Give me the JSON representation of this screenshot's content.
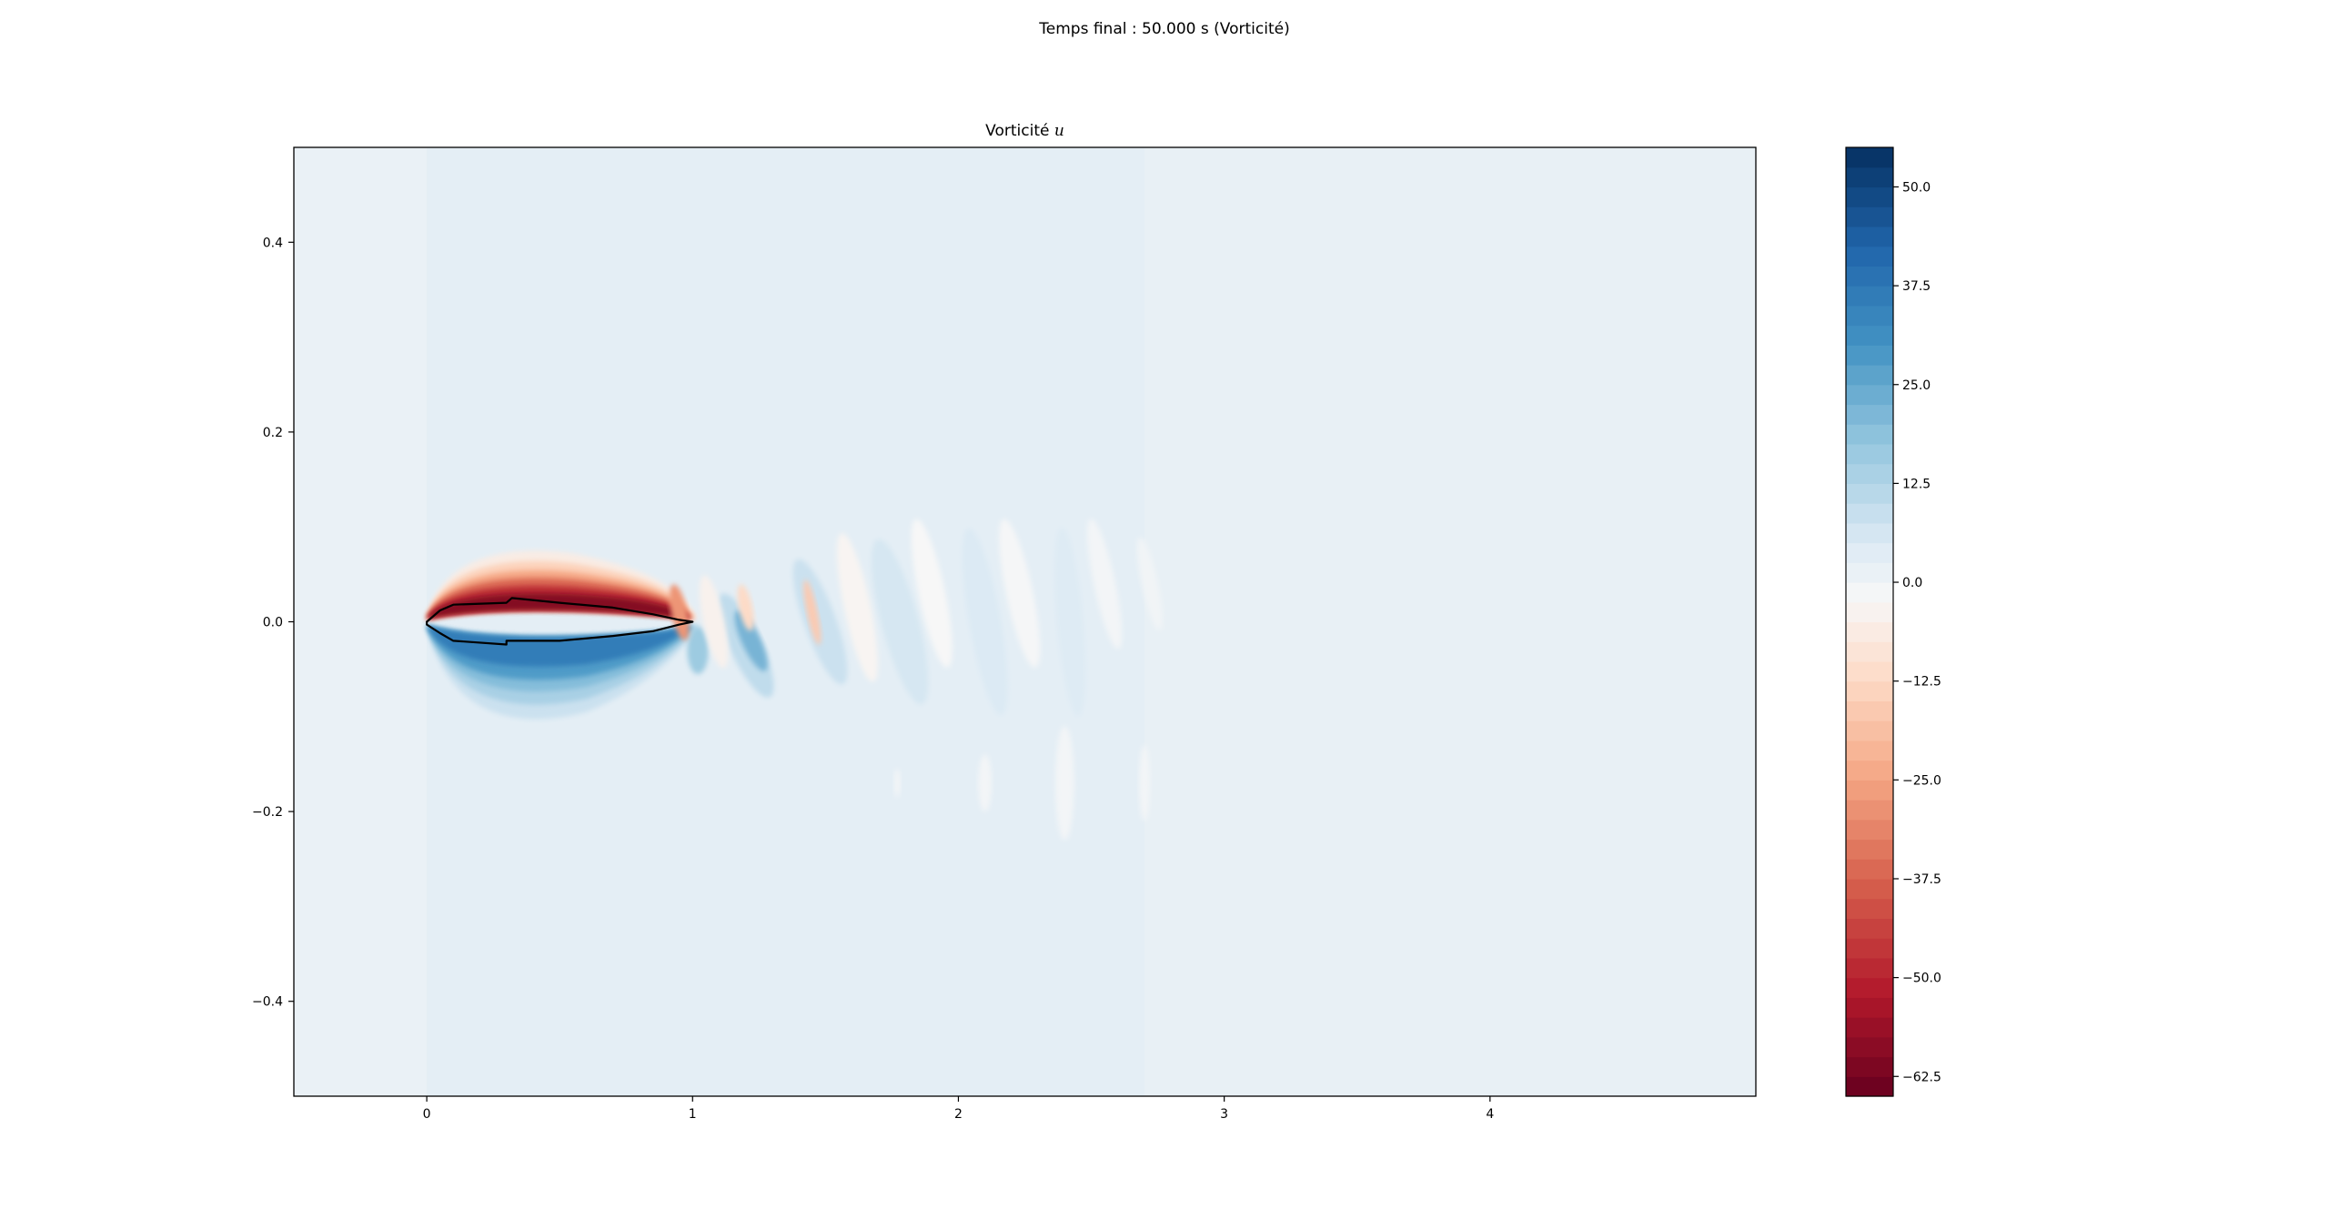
{
  "figure": {
    "suptitle": "Temps final : 50.000 s (Vorticité)",
    "axes_title_prefix": "Vorticité ",
    "axes_title_var": "u"
  },
  "chart_data": {
    "type": "heatmap",
    "title": "Vorticité u",
    "suptitle": "Temps final : 50.000 s (Vorticité)",
    "xlabel": "",
    "ylabel": "",
    "xlim": [
      -0.5,
      5.0
    ],
    "ylim": [
      -0.5,
      0.5
    ],
    "x_ticks": [
      0,
      1,
      2,
      3,
      4
    ],
    "x_tick_labels": [
      "0",
      "1",
      "2",
      "3",
      "4"
    ],
    "y_ticks": [
      0.4,
      0.2,
      0.0,
      -0.2,
      -0.4
    ],
    "y_tick_labels": [
      "0.4",
      "0.2",
      "0.0",
      "−0.2",
      "−0.4"
    ],
    "colormap": "RdBu",
    "colorbar": {
      "range": [
        -65,
        55
      ],
      "ticks": [
        50.0,
        37.5,
        25.0,
        12.5,
        0.0,
        -12.5,
        -25.0,
        -37.5,
        -50.0,
        -62.5
      ],
      "tick_labels": [
        "50.0",
        "37.5",
        "25.0",
        "12.5",
        "0.0",
        "−12.5",
        "−25.0",
        "−37.5",
        "−50.0",
        "−62.5"
      ],
      "levels": 48
    },
    "background_value": 3.0,
    "features": [
      {
        "name": "upper-shear-layer",
        "x": 0.4,
        "y": 0.012,
        "value": -60
      },
      {
        "name": "lower-shear-layer",
        "x": 0.35,
        "y": -0.022,
        "value": 35
      },
      {
        "name": "wake-vortex-1",
        "x": 1.22,
        "y": -0.02,
        "value": 22
      },
      {
        "name": "wake-vortex-2",
        "x": 1.5,
        "y": 0.01,
        "value": -10
      },
      {
        "name": "wake-vortex-3",
        "x": 1.8,
        "y": 0.0,
        "value": -4
      },
      {
        "name": "wake-vortex-4",
        "x": 2.1,
        "y": 0.0,
        "value": -3
      },
      {
        "name": "wake-vortex-5",
        "x": 2.45,
        "y": 0.0,
        "value": -2
      }
    ],
    "body_outline": [
      [
        0.0,
        0.0
      ],
      [
        0.05,
        0.012
      ],
      [
        0.1,
        0.018
      ],
      [
        0.3,
        0.02
      ],
      [
        0.32,
        0.025
      ],
      [
        0.5,
        0.02
      ],
      [
        0.7,
        0.015
      ],
      [
        0.85,
        0.008
      ],
      [
        0.95,
        0.002
      ],
      [
        1.0,
        0.0
      ],
      [
        0.95,
        -0.003
      ],
      [
        0.85,
        -0.01
      ],
      [
        0.7,
        -0.015
      ],
      [
        0.5,
        -0.02
      ],
      [
        0.3,
        -0.02
      ],
      [
        0.3,
        -0.024
      ],
      [
        0.1,
        -0.02
      ],
      [
        0.05,
        -0.012
      ],
      [
        0.0,
        -0.003
      ]
    ],
    "grid": false
  },
  "colors": {
    "background_field": "#dde9f2",
    "axes_frame": "#000000",
    "body_outline": "#000000",
    "red_extreme": "#67001f",
    "blue_extreme": "#053061"
  }
}
